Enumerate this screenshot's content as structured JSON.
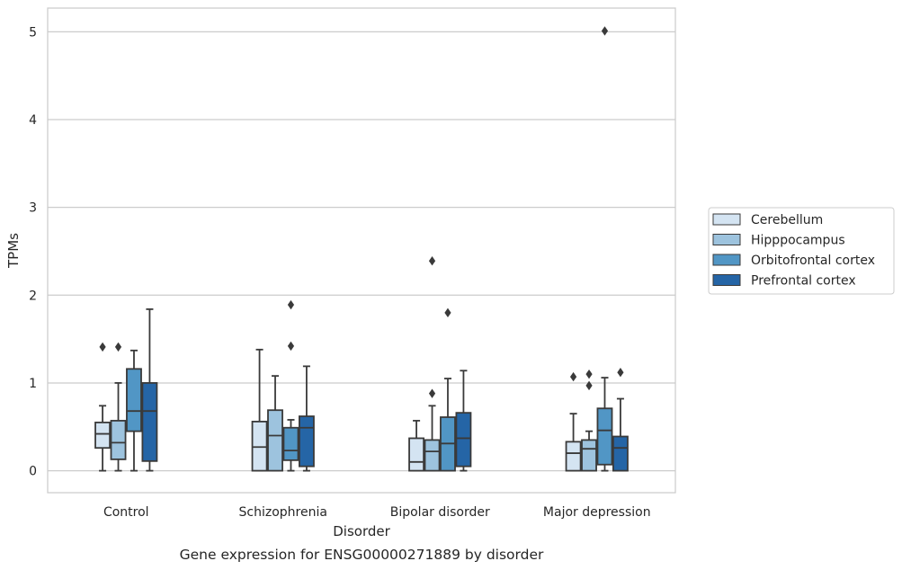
{
  "caption": "Gene expression for ENSG00000271889 by disorder",
  "chart_data": {
    "type": "box",
    "xlabel": "Disorder",
    "ylabel": "TPMs",
    "ylim": [
      -0.25,
      5.27
    ],
    "yticks": [
      "0",
      "1",
      "2",
      "3",
      "4",
      "5"
    ],
    "grid": "horizontal",
    "legend_position": "right",
    "categories": [
      "Control",
      "Schizophrenia",
      "Bipolar disorder",
      "Major depression"
    ],
    "series": [
      {
        "name": "Cerebellum",
        "color": "#d4e4f2",
        "boxes": [
          {
            "whislo": 0.0,
            "q1": 0.26,
            "med": 0.42,
            "q3": 0.55,
            "whishi": 0.74,
            "fliers": [
              1.41
            ]
          },
          {
            "whislo": 0.0,
            "q1": 0.0,
            "med": 0.27,
            "q3": 0.56,
            "whishi": 1.38,
            "fliers": []
          },
          {
            "whislo": 0.0,
            "q1": 0.0,
            "med": 0.1,
            "q3": 0.37,
            "whishi": 0.57,
            "fliers": []
          },
          {
            "whislo": 0.0,
            "q1": 0.0,
            "med": 0.2,
            "q3": 0.33,
            "whishi": 0.65,
            "fliers": [
              1.07
            ]
          }
        ]
      },
      {
        "name": "Hipppocampus",
        "color": "#9dc3de",
        "boxes": [
          {
            "whislo": 0.0,
            "q1": 0.13,
            "med": 0.32,
            "q3": 0.57,
            "whishi": 1.0,
            "fliers": [
              1.41
            ]
          },
          {
            "whislo": 0.0,
            "q1": 0.0,
            "med": 0.4,
            "q3": 0.69,
            "whishi": 1.08,
            "fliers": []
          },
          {
            "whislo": 0.0,
            "q1": 0.0,
            "med": 0.22,
            "q3": 0.35,
            "whishi": 0.74,
            "fliers": [
              0.88,
              2.39
            ]
          },
          {
            "whislo": 0.0,
            "q1": 0.0,
            "med": 0.25,
            "q3": 0.35,
            "whishi": 0.45,
            "fliers": [
              0.97,
              1.1
            ]
          }
        ]
      },
      {
        "name": "Orbitofrontal cortex",
        "color": "#5196c5",
        "boxes": [
          {
            "whislo": 0.0,
            "q1": 0.45,
            "med": 0.68,
            "q3": 1.16,
            "whishi": 1.37,
            "fliers": []
          },
          {
            "whislo": 0.0,
            "q1": 0.12,
            "med": 0.23,
            "q3": 0.49,
            "whishi": 0.58,
            "fliers": [
              1.42,
              1.89
            ]
          },
          {
            "whislo": 0.0,
            "q1": 0.0,
            "med": 0.31,
            "q3": 0.61,
            "whishi": 1.05,
            "fliers": [
              1.8
            ]
          },
          {
            "whislo": 0.0,
            "q1": 0.07,
            "med": 0.46,
            "q3": 0.71,
            "whishi": 1.06,
            "fliers": [
              5.01
            ]
          }
        ]
      },
      {
        "name": "Prefrontal cortex",
        "color": "#2565a6",
        "boxes": [
          {
            "whislo": 0.0,
            "q1": 0.11,
            "med": 0.68,
            "q3": 1.0,
            "whishi": 1.84,
            "fliers": []
          },
          {
            "whislo": 0.0,
            "q1": 0.05,
            "med": 0.49,
            "q3": 0.62,
            "whishi": 1.19,
            "fliers": []
          },
          {
            "whislo": 0.0,
            "q1": 0.05,
            "med": 0.37,
            "q3": 0.66,
            "whishi": 1.14,
            "fliers": []
          },
          {
            "whislo": 0.0,
            "q1": 0.0,
            "med": 0.26,
            "q3": 0.39,
            "whishi": 0.82,
            "fliers": [
              1.12
            ]
          }
        ]
      }
    ]
  }
}
